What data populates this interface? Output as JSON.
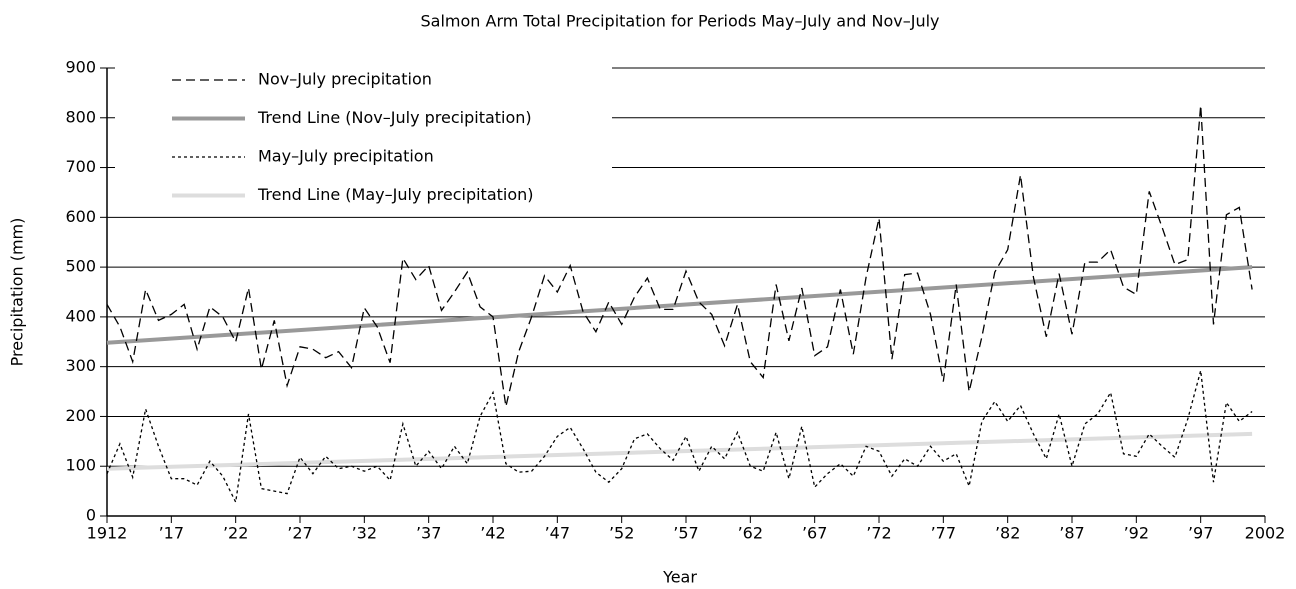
{
  "chart_data": {
    "type": "line",
    "title": "Salmon Arm Total Precipitation for Periods May–July and Nov–July",
    "x_label": "Year",
    "y_label": "Precipitation (mm)",
    "x": [
      1912,
      1913,
      1914,
      1915,
      1916,
      1917,
      1918,
      1919,
      1920,
      1921,
      1922,
      1923,
      1924,
      1925,
      1926,
      1927,
      1928,
      1929,
      1930,
      1931,
      1932,
      1933,
      1934,
      1935,
      1936,
      1937,
      1938,
      1939,
      1940,
      1941,
      1942,
      1943,
      1944,
      1945,
      1946,
      1947,
      1948,
      1949,
      1950,
      1951,
      1952,
      1953,
      1954,
      1955,
      1956,
      1957,
      1958,
      1959,
      1960,
      1961,
      1962,
      1963,
      1964,
      1965,
      1966,
      1967,
      1968,
      1969,
      1970,
      1971,
      1972,
      1973,
      1974,
      1975,
      1976,
      1977,
      1978,
      1979,
      1980,
      1981,
      1982,
      1983,
      1984,
      1985,
      1986,
      1987,
      1988,
      1989,
      1990,
      1991,
      1992,
      1993,
      1994,
      1995,
      1996,
      1997,
      1998,
      1999,
      2000,
      2001
    ],
    "series": [
      {
        "name": "Nov–July precipitation",
        "color": "#000000",
        "dash": "dashed",
        "values": [
          425,
          380,
          310,
          455,
          393,
          405,
          425,
          335,
          420,
          400,
          350,
          458,
          295,
          393,
          262,
          340,
          335,
          318,
          330,
          298,
          418,
          380,
          308,
          518,
          475,
          503,
          413,
          450,
          490,
          420,
          400,
          220,
          330,
          400,
          483,
          450,
          503,
          410,
          370,
          430,
          385,
          440,
          478,
          415,
          415,
          492,
          430,
          405,
          342,
          425,
          310,
          278,
          465,
          352,
          458,
          322,
          340,
          455,
          325,
          480,
          598,
          315,
          485,
          488,
          405,
          270,
          465,
          250,
          360,
          490,
          535,
          685,
          480,
          360,
          487,
          365,
          510,
          510,
          535,
          460,
          445,
          652,
          580,
          505,
          515,
          825,
          385,
          605,
          620,
          455
        ]
      },
      {
        "name": "Trend Line (Nov–July precipitation)",
        "color": "#999999",
        "dash": "solid",
        "x": [
          1912,
          2001
        ],
        "values": [
          348,
          500
        ]
      },
      {
        "name": "May–July precipitation",
        "color": "#000000",
        "dash": "dotted",
        "values": [
          85,
          145,
          78,
          215,
          140,
          75,
          75,
          62,
          110,
          80,
          28,
          205,
          55,
          50,
          45,
          118,
          85,
          120,
          95,
          100,
          90,
          100,
          72,
          185,
          100,
          130,
          95,
          140,
          105,
          200,
          248,
          105,
          88,
          90,
          120,
          160,
          178,
          135,
          88,
          68,
          95,
          155,
          165,
          135,
          112,
          160,
          90,
          140,
          115,
          168,
          100,
          90,
          168,
          75,
          180,
          58,
          85,
          105,
          80,
          140,
          130,
          80,
          115,
          100,
          140,
          110,
          125,
          60,
          190,
          230,
          190,
          222,
          165,
          115,
          205,
          100,
          185,
          205,
          248,
          125,
          120,
          165,
          140,
          118,
          195,
          292,
          68,
          228,
          190,
          210
        ]
      },
      {
        "name": "Trend Line (May–July precipitation)",
        "color": "#dddddd",
        "dash": "solid",
        "x": [
          1912,
          2001
        ],
        "values": [
          95,
          165
        ]
      }
    ],
    "xlim": [
      1912,
      2002
    ],
    "xticks": [
      1912,
      {
        "value": 1917,
        "label": "’17"
      },
      {
        "value": 1922,
        "label": "’22"
      },
      {
        "value": 1927,
        "label": "’27"
      },
      {
        "value": 1932,
        "label": "’32"
      },
      {
        "value": 1937,
        "label": "’37"
      },
      {
        "value": 1942,
        "label": "’42"
      },
      {
        "value": 1947,
        "label": "’47"
      },
      {
        "value": 1952,
        "label": "’52"
      },
      {
        "value": 1957,
        "label": "’57"
      },
      {
        "value": 1962,
        "label": "’62"
      },
      {
        "value": 1967,
        "label": "’67"
      },
      {
        "value": 1972,
        "label": "’72"
      },
      {
        "value": 1977,
        "label": "’77"
      },
      {
        "value": 1982,
        "label": "’82"
      },
      {
        "value": 1987,
        "label": "’87"
      },
      {
        "value": 1992,
        "label": "’92"
      },
      {
        "value": 1997,
        "label": "’97"
      },
      2002
    ],
    "ylim": [
      0,
      900
    ],
    "yticks": [
      0,
      100,
      200,
      300,
      400,
      500,
      600,
      700,
      800,
      900
    ],
    "grid": true,
    "legend": "upper left"
  }
}
